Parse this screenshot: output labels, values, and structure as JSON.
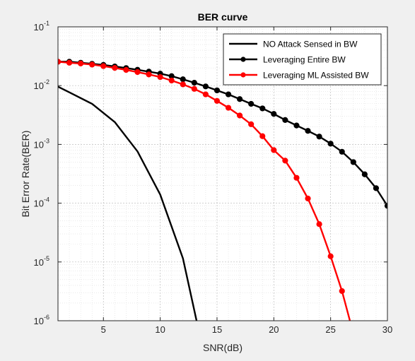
{
  "chart_data": {
    "type": "line",
    "title": "BER curve",
    "xlabel": "SNR(dB)",
    "ylabel": "Bit Error Rate(BER)",
    "xlim": [
      1,
      30
    ],
    "ylim": [
      1e-06,
      0.1
    ],
    "yscale": "log",
    "grid": true,
    "minor_grid": true,
    "legend_position": "top-right",
    "xticks": [
      5,
      10,
      15,
      20,
      25,
      30
    ],
    "xtick_labels": [
      "5",
      "10",
      "15",
      "20",
      "25",
      "30"
    ],
    "yticks": [
      {
        "value": 1e-06,
        "base": "10",
        "exp": "-6"
      },
      {
        "value": 1e-05,
        "base": "10",
        "exp": "-5"
      },
      {
        "value": 0.0001,
        "base": "10",
        "exp": "-4"
      },
      {
        "value": 0.001,
        "base": "10",
        "exp": "-3"
      },
      {
        "value": 0.01,
        "base": "10",
        "exp": "-2"
      },
      {
        "value": 0.1,
        "base": "10",
        "exp": "-1"
      }
    ],
    "series": [
      {
        "name": "NO Attack Sensed in BW",
        "color": "#000000",
        "marker": "none",
        "x": [
          1,
          2,
          4,
          6,
          8,
          10,
          12,
          13.2
        ],
        "y": [
          0.0096,
          0.0077,
          0.0049,
          0.0024,
          0.00076,
          0.00014,
          1.15e-05,
          1e-06
        ]
      },
      {
        "name": "Leveraging Entire BW",
        "color": "#000000",
        "marker": "circle",
        "x": [
          1,
          2,
          3,
          4,
          5,
          6,
          7,
          8,
          9,
          10,
          11,
          12,
          13,
          14,
          15,
          16,
          17,
          18,
          19,
          20,
          21,
          22,
          23,
          24,
          25,
          26,
          27,
          28,
          29,
          30
        ],
        "y": [
          0.0255,
          0.0255,
          0.0245,
          0.0235,
          0.0225,
          0.0212,
          0.0199,
          0.0186,
          0.0173,
          0.016,
          0.0145,
          0.0128,
          0.0112,
          0.0097,
          0.0083,
          0.0071,
          0.0059,
          0.0049,
          0.0041,
          0.0033,
          0.0026,
          0.0021,
          0.0017,
          0.00136,
          0.00103,
          0.00075,
          0.0005,
          0.00031,
          0.00018,
          9e-05
        ]
      },
      {
        "name": "Leveraging ML Assisted BW",
        "color": "#ff0000",
        "marker": "circle",
        "x": [
          1,
          2,
          3,
          4,
          5,
          6,
          7,
          8,
          9,
          10,
          11,
          12,
          13,
          14,
          15,
          16,
          17,
          18,
          19,
          20,
          21,
          22,
          23,
          24,
          25,
          26,
          26.7
        ],
        "y": [
          0.0255,
          0.0245,
          0.0238,
          0.0228,
          0.0215,
          0.02,
          0.0185,
          0.017,
          0.0155,
          0.014,
          0.0122,
          0.0105,
          0.0088,
          0.0071,
          0.0055,
          0.0042,
          0.0031,
          0.0022,
          0.00138,
          0.0008,
          0.00053,
          0.00027,
          0.00012,
          4.4e-05,
          1.25e-05,
          3.2e-06,
          1e-06
        ]
      }
    ]
  }
}
